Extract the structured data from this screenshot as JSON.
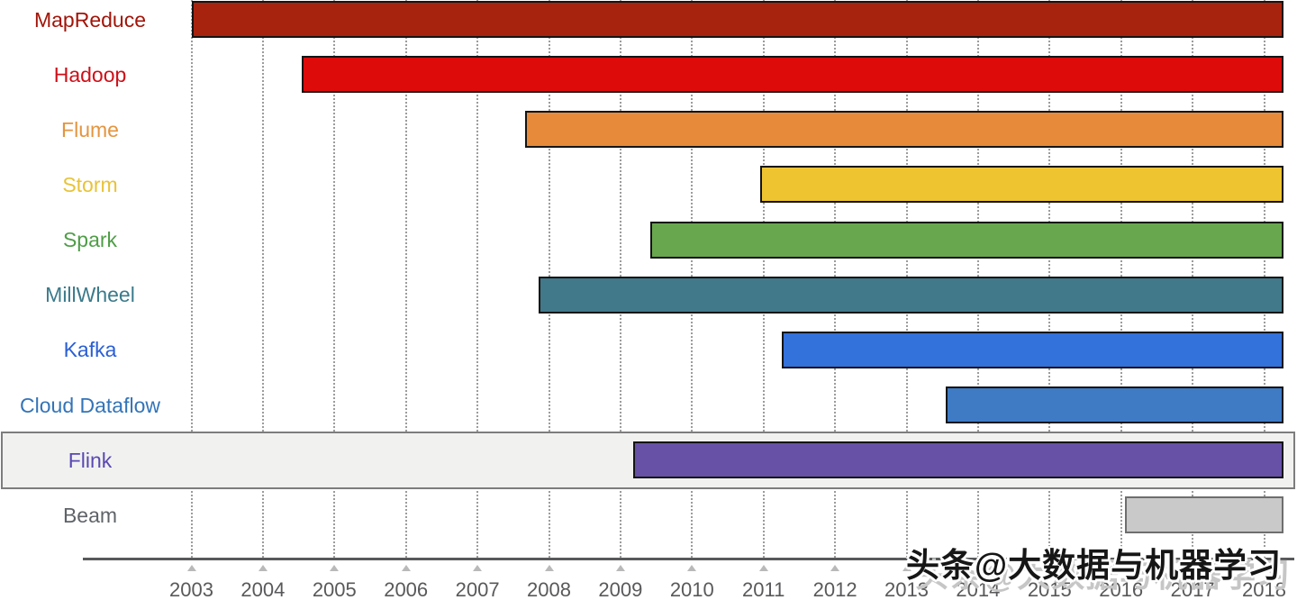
{
  "chart_data": {
    "type": "gantt",
    "description": "Horizontal timeline bars of big data processing systems, each bar spanning from its start year to the right edge of the chart",
    "x_axis": {
      "unit": "year",
      "range": [
        2003,
        2018.3
      ],
      "tick_labels": [
        "2003",
        "2004",
        "2005",
        "2006",
        "2007",
        "2008",
        "2009",
        "2010",
        "2011",
        "2012",
        "2013",
        "2014",
        "2015",
        "2016",
        "2017",
        "2018"
      ],
      "gridlines": "dotted-vertical"
    },
    "rows": [
      {
        "label": "MapReduce",
        "start": 2003.0,
        "end": 2018.27,
        "bar_color": "#a8230d",
        "border_color": "#141414",
        "label_color": "#a21408",
        "highlighted": false
      },
      {
        "label": "Hadoop",
        "start": 2004.54,
        "end": 2018.27,
        "bar_color": "#de0b0b",
        "border_color": "#141414",
        "label_color": "#ce0f18",
        "highlighted": false
      },
      {
        "label": "Flume",
        "start": 2007.67,
        "end": 2018.27,
        "bar_color": "#e78a39",
        "border_color": "#141414",
        "label_color": "#e4953f",
        "highlighted": false
      },
      {
        "label": "Storm",
        "start": 2010.95,
        "end": 2018.27,
        "bar_color": "#efc431",
        "border_color": "#141414",
        "label_color": "#e8c339",
        "highlighted": false
      },
      {
        "label": "Spark",
        "start": 2009.42,
        "end": 2018.27,
        "bar_color": "#69a74e",
        "border_color": "#141414",
        "label_color": "#4f9d47",
        "highlighted": false
      },
      {
        "label": "MillWheel",
        "start": 2007.86,
        "end": 2018.27,
        "bar_color": "#41798a",
        "border_color": "#141414",
        "label_color": "#3b7a8b",
        "highlighted": false
      },
      {
        "label": "Kafka",
        "start": 2011.25,
        "end": 2018.27,
        "bar_color": "#3371db",
        "border_color": "#141414",
        "label_color": "#2a5fd4",
        "highlighted": false
      },
      {
        "label": "Cloud Dataflow",
        "start": 2013.55,
        "end": 2018.27,
        "bar_color": "#3e7bc4",
        "border_color": "#141414",
        "label_color": "#3374b8",
        "highlighted": false
      },
      {
        "label": "Flink",
        "start": 2009.18,
        "end": 2018.27,
        "bar_color": "#6751a7",
        "border_color": "#141414",
        "label_color": "#5a48b2",
        "highlighted": true
      },
      {
        "label": "Beam",
        "start": 2016.05,
        "end": 2018.27,
        "bar_color": "#c9c9c9",
        "border_color": "#6e6e6e",
        "label_color": "#5f6368",
        "highlighted": false
      }
    ],
    "colors": {
      "background": "#ffffff",
      "gridline": "#9c9c9c",
      "axis_line": "#58595b",
      "tick_marker": "#b9b9b9",
      "tick_label": "#59595b",
      "highlight_bg": "#f1f1f0",
      "highlight_border": "#7d7d7d"
    }
  },
  "watermark": {
    "text": "头条@大数据与机器学习"
  }
}
